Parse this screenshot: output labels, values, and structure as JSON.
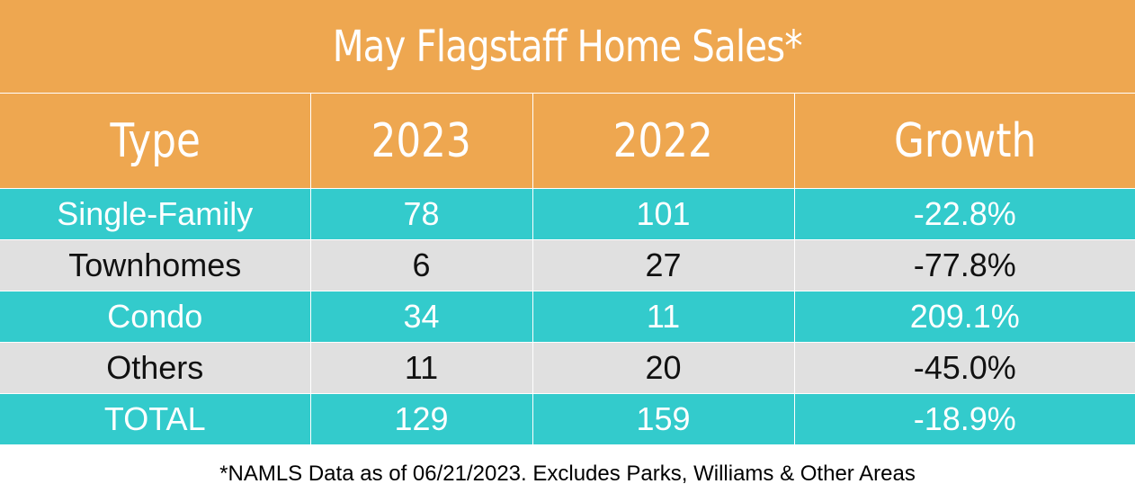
{
  "title": "May Flagstaff Home Sales*",
  "table": {
    "headers": [
      "Type",
      "2023",
      "2022",
      "Growth"
    ],
    "rows": [
      {
        "type": "Single-Family",
        "y2023": "78",
        "y2022": "101",
        "growth": "-22.8%",
        "style": "teal"
      },
      {
        "type": "Townhomes",
        "y2023": "6",
        "y2022": "27",
        "growth": "-77.8%",
        "style": "grey"
      },
      {
        "type": "Condo",
        "y2023": "34",
        "y2022": "11",
        "growth": "209.1%",
        "style": "teal"
      },
      {
        "type": "Others",
        "y2023": "11",
        "y2022": "20",
        "growth": "-45.0%",
        "style": "grey"
      },
      {
        "type": "TOTAL",
        "y2023": "129",
        "y2022": "159",
        "growth": "-18.9%",
        "style": "teal"
      }
    ]
  },
  "footnote": "*NAMLS Data as of 06/21/2023. Excludes Parks, Williams & Other Areas",
  "colors": {
    "header_orange": "#eea750",
    "row_teal": "#33cbcc",
    "row_grey": "#e0e0e0"
  }
}
